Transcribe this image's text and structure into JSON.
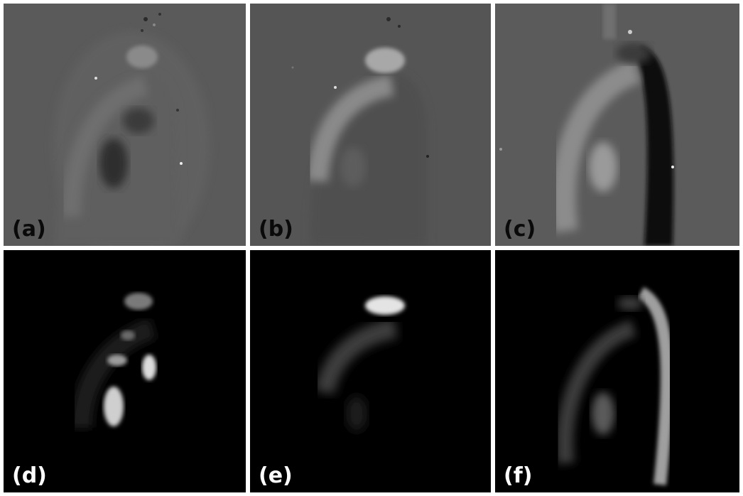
{
  "panels": [
    {
      "id": "a",
      "label": "(a)"
    },
    {
      "id": "b",
      "label": "(b)"
    },
    {
      "id": "c",
      "label": "(c)"
    },
    {
      "id": "d",
      "label": "(d)"
    },
    {
      "id": "e",
      "label": "(e)"
    },
    {
      "id": "f",
      "label": "(f)"
    }
  ]
}
